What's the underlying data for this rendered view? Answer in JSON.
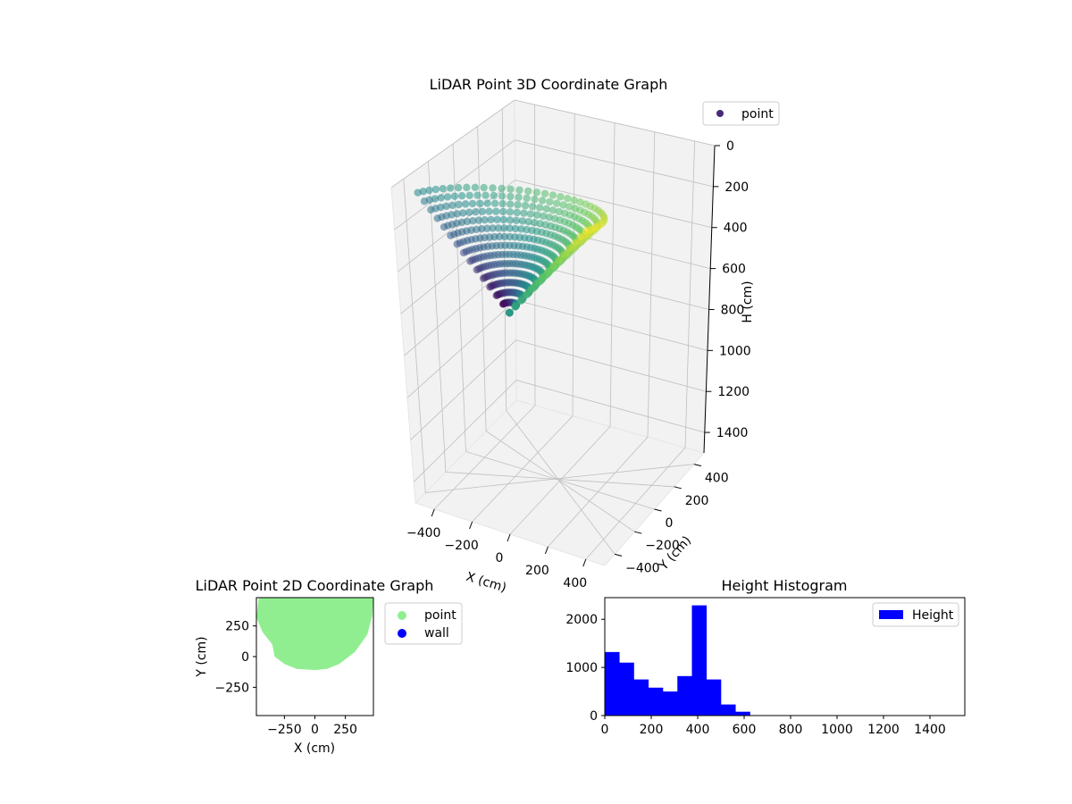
{
  "colors": {
    "hist_bar": "#0000ff",
    "point2d": "#90ee90",
    "wall2d": "#0000ff",
    "pane_bg": "#f2f2f2",
    "viridis": [
      "#440154",
      "#3b528b",
      "#21918c",
      "#5ec962",
      "#fde725"
    ]
  },
  "chart_data": [
    {
      "type": "scatter",
      "title": "LiDAR Point 3D Coordinate Graph",
      "xlabel": "X (cm)",
      "ylabel": "Y (cm)",
      "zlabel": "H (cm)",
      "xlim": [
        -500,
        500
      ],
      "ylim": [
        -500,
        500
      ],
      "zlim": [
        1500,
        0
      ],
      "xticks": [
        "−400",
        "−200",
        "0",
        "200",
        "400"
      ],
      "yticks": [
        "−400",
        "−200",
        "0",
        "200",
        "400"
      ],
      "zticks": [
        "0",
        "200",
        "400",
        "600",
        "800",
        "1000",
        "1200",
        "1400"
      ],
      "legend": [
        "point"
      ],
      "legend_position": "top-right",
      "colormap": "viridis",
      "color_by": "point order",
      "grid": true
    },
    {
      "type": "scatter",
      "title": "LiDAR Point 2D Coordinate Graph",
      "xlabel": "X (cm)",
      "ylabel": "Y (cm)",
      "xlim": [
        -480,
        480
      ],
      "ylim": [
        -480,
        480
      ],
      "xticks": [
        "−250",
        "0",
        "250"
      ],
      "yticks": [
        "−250",
        "0",
        "250"
      ],
      "legend": [
        "point",
        "wall"
      ],
      "legend_position": "outside right",
      "region_outline": [
        [
          -460,
          480
        ],
        [
          -480,
          320
        ],
        [
          -430,
          200
        ],
        [
          -350,
          100
        ],
        [
          -330,
          0
        ],
        [
          -250,
          -60
        ],
        [
          -150,
          -100
        ],
        [
          0,
          -110
        ],
        [
          100,
          -100
        ],
        [
          200,
          -60
        ],
        [
          330,
          40
        ],
        [
          430,
          180
        ],
        [
          470,
          330
        ],
        [
          480,
          480
        ]
      ],
      "grid": false
    },
    {
      "type": "bar",
      "title": "Height Histogram",
      "xlabel": "",
      "ylabel": "",
      "bin_width": 62.5,
      "bin_start": 0,
      "values": [
        1320,
        1100,
        750,
        580,
        500,
        820,
        2290,
        750,
        230,
        80
      ],
      "xlim": [
        0,
        1550
      ],
      "ylim": [
        0,
        2450
      ],
      "xticks": [
        "0",
        "200",
        "400",
        "600",
        "800",
        "1000",
        "1200",
        "1400"
      ],
      "yticks": [
        "0",
        "1000",
        "2000"
      ],
      "legend": [
        "Height"
      ],
      "legend_position": "top-right",
      "grid": false
    }
  ]
}
